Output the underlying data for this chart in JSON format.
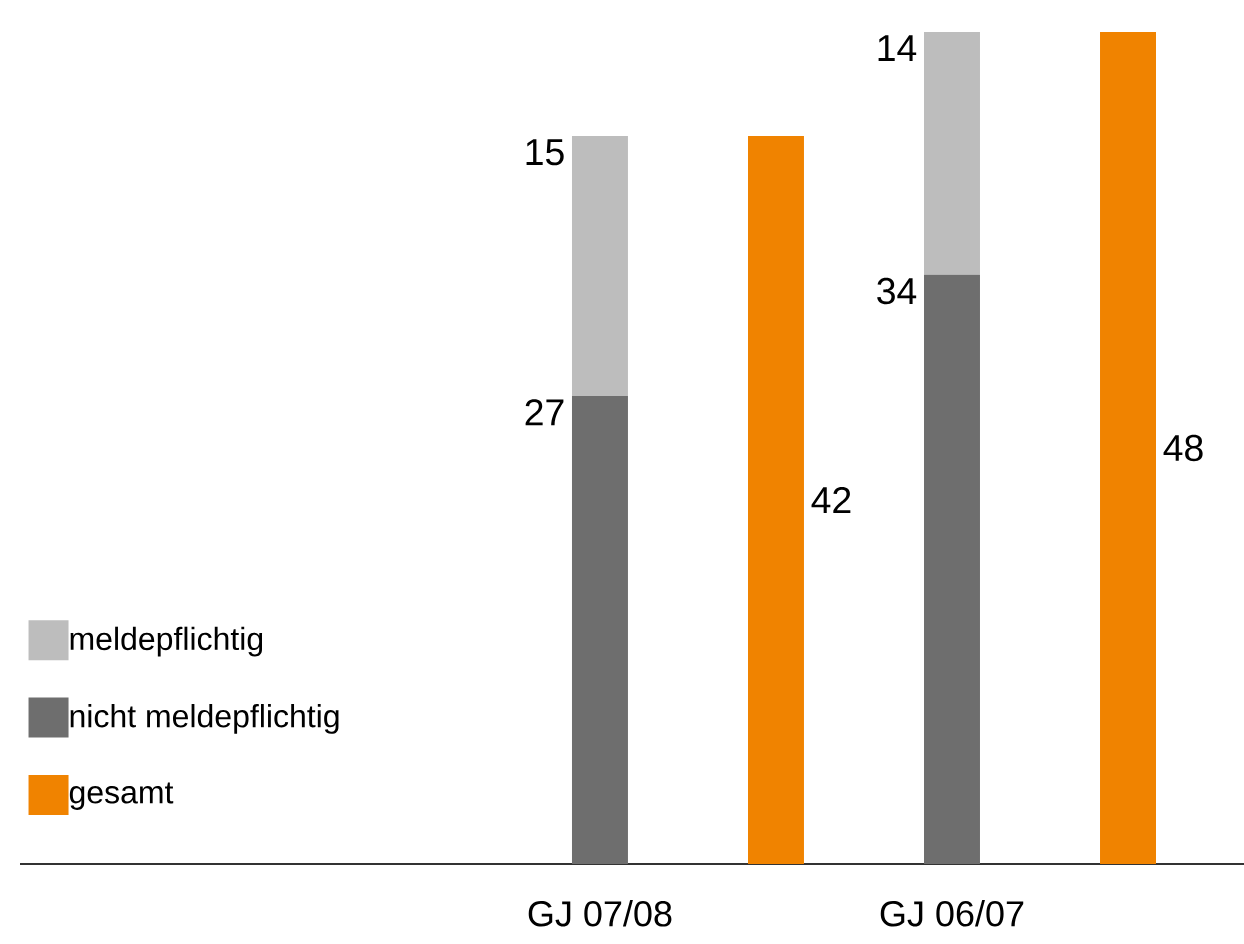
{
  "chart_data": {
    "type": "bar",
    "stacked": true,
    "categories": [
      "GJ 07/08",
      null,
      "GJ 06/07",
      null
    ],
    "series": [
      {
        "name": "nicht meldepflichtig",
        "color": "#6e6e6e",
        "values": [
          27,
          null,
          34,
          null
        ]
      },
      {
        "name": "meldepflichtig",
        "color": "#bdbdbd",
        "values": [
          15,
          null,
          14,
          null
        ]
      },
      {
        "name": "gesamt",
        "color": "#f08300",
        "values": [
          null,
          42,
          null,
          48
        ]
      }
    ],
    "data_labels": true,
    "legend": "left"
  }
}
